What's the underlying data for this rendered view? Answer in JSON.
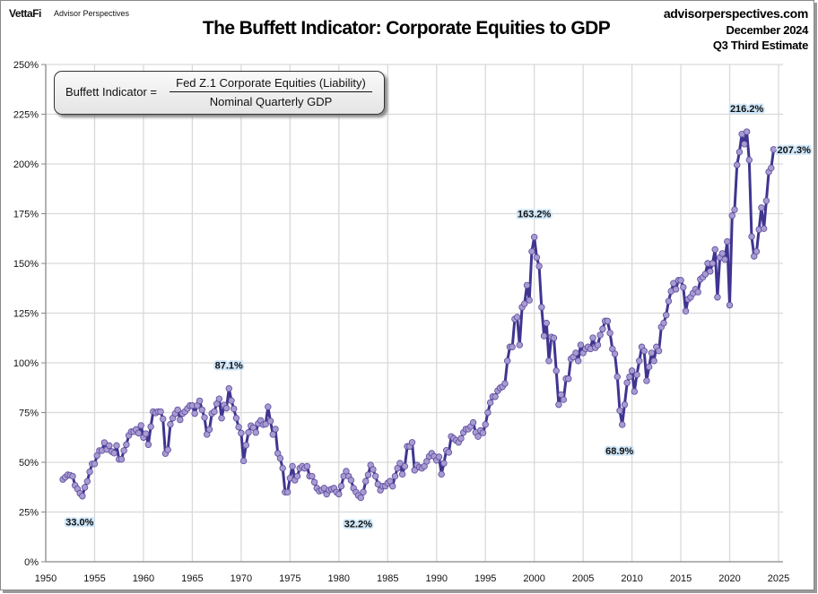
{
  "header": {
    "logo": "VettaFi",
    "logo_sub": "Advisor Perspectives",
    "title": "The Buffett Indicator: Corporate Equities to GDP",
    "site": "advisorperspectives.com",
    "date": "December 2024",
    "estimate": "Q3 Third Estimate"
  },
  "formula": {
    "lhs": "Buffett Indicator =",
    "numerator": "Fed Z.1 Corporate Equities (Liability)",
    "denominator": "Nominal Quarterly GDP"
  },
  "chart_data": {
    "type": "line",
    "title": "The Buffett Indicator: Corporate Equities to GDP",
    "xlabel": "",
    "ylabel": "",
    "frequency": "quarterly",
    "start_period": "1951 Q4",
    "end_period": "2024 Q3",
    "xlim": [
      1950,
      2025
    ],
    "ylim": [
      0,
      250
    ],
    "x_ticks": [
      "1950",
      "1955",
      "1960",
      "1965",
      "1970",
      "1975",
      "1980",
      "1985",
      "1990",
      "1995",
      "2000",
      "2005",
      "2010",
      "2015",
      "2020",
      "2025"
    ],
    "y_ticks": [
      "0%",
      "25%",
      "50%",
      "75%",
      "100%",
      "125%",
      "150%",
      "175%",
      "200%",
      "225%",
      "250%"
    ],
    "grid": true,
    "markers": true,
    "line_color": "#3f3590",
    "marker_fill": "#a99ad2",
    "values": [
      41.4,
      42.5,
      43.7,
      43.5,
      43,
      38.4,
      36.6,
      34.4,
      33.0,
      37.4,
      40.4,
      45.2,
      49.2,
      49.2,
      53.4,
      55.9,
      55.9,
      59.9,
      56.4,
      58.4,
      55.4,
      54.6,
      58.4,
      51.5,
      51.5,
      55.9,
      58.9,
      63.5,
      65.4,
      65.4,
      66.5,
      64.7,
      68.5,
      62.5,
      64.4,
      58.9,
      67.9,
      75.5,
      74.8,
      75.5,
      75.5,
      71.8,
      54.4,
      56.3,
      69.1,
      72.2,
      74.5,
      76.4,
      71.4,
      74.5,
      75.5,
      77,
      78.5,
      78.5,
      74.5,
      78.5,
      80.9,
      76.4,
      72.5,
      64,
      66.5,
      74.5,
      75.5,
      79.4,
      81.9,
      72.2,
      78.8,
      77.2,
      87.1,
      81,
      76.9,
      72.2,
      67.7,
      64.7,
      50.7,
      58.6,
      65,
      68.4,
      67.4,
      65,
      69.5,
      71,
      68.9,
      69.2,
      77.9,
      70.7,
      64,
      66.7,
      54.5,
      52,
      47,
      35,
      35,
      42,
      48,
      41,
      43,
      47,
      48,
      47,
      48,
      43,
      43,
      40,
      37,
      35.5,
      36,
      37,
      34,
      36,
      36.5,
      37,
      35,
      34,
      38,
      43,
      45.5,
      43,
      41,
      37,
      35,
      33.3,
      32.2,
      35,
      40.5,
      43.7,
      48.6,
      46.4,
      43,
      39,
      36,
      38,
      38,
      39.6,
      40.5,
      38,
      43,
      47,
      49.5,
      44,
      48,
      58,
      58,
      60,
      46,
      48.6,
      47.5,
      47,
      48,
      50.5,
      53,
      54.5,
      53,
      51,
      52.7,
      44,
      49.5,
      56,
      55,
      63,
      62,
      61,
      60,
      62,
      65,
      66.7,
      66.7,
      68,
      70,
      65,
      63,
      66,
      64.8,
      69,
      75,
      80,
      83,
      83,
      86,
      87.4,
      88,
      89.6,
      101,
      108,
      108,
      122,
      123,
      109,
      128,
      129.7,
      139,
      131.5,
      156,
      163.2,
      153,
      148.6,
      128,
      113.5,
      120,
      101,
      113,
      112.5,
      96,
      79,
      84,
      81.5,
      92,
      92,
      102,
      103,
      105,
      101,
      109,
      105,
      107,
      108,
      107,
      112.6,
      107.6,
      109,
      114,
      117,
      121,
      121,
      115,
      107,
      104.5,
      93,
      76,
      68.9,
      79,
      90,
      93,
      96,
      85.6,
      94,
      101,
      108,
      106,
      91,
      98,
      105,
      101,
      108,
      106,
      118,
      120,
      124,
      131,
      136,
      140,
      137,
      141.5,
      141.5,
      138,
      126,
      132,
      133,
      135,
      137,
      135.6,
      142,
      143,
      144.6,
      150,
      146,
      150,
      157,
      133,
      153,
      155,
      152,
      161,
      129,
      174,
      177,
      199.5,
      206,
      215,
      210,
      216.2,
      202,
      163.5,
      153.6,
      156,
      167,
      178,
      167.5,
      181.5,
      196,
      198,
      207.3
    ],
    "annotations": [
      {
        "label": "33.0%",
        "period": "1953 Q4",
        "value": 33.0,
        "placement": "below"
      },
      {
        "label": "87.1%",
        "period": "1968 Q4",
        "value": 87.1,
        "placement": "above"
      },
      {
        "label": "32.2%",
        "period": "1982 Q2",
        "value": 32.2,
        "placement": "below"
      },
      {
        "label": "163.2%",
        "period": "2000 Q1",
        "value": 163.2,
        "placement": "above"
      },
      {
        "label": "68.9%",
        "period": "2009 Q1",
        "value": 68.9,
        "placement": "below"
      },
      {
        "label": "216.2%",
        "period": "2021 Q4",
        "value": 216.2,
        "placement": "above"
      },
      {
        "label": "207.3%",
        "period": "2024 Q3",
        "value": 207.3,
        "placement": "right"
      }
    ]
  }
}
